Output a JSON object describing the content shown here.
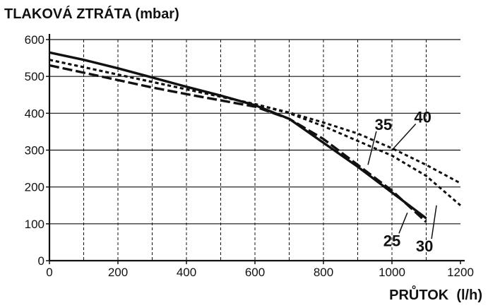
{
  "chart_data": {
    "type": "line",
    "title": "",
    "ylabel": "TLAKOVÁ ZTRÁTA (mbar)",
    "xlabel": "PRŮTOK  (l/h)",
    "xlim": [
      0,
      1200
    ],
    "ylim": [
      0,
      600
    ],
    "x_ticks": [
      "0",
      "200",
      "400",
      "600",
      "800",
      "1000",
      "1200"
    ],
    "y_ticks": [
      "0",
      "100",
      "200",
      "300",
      "400",
      "500",
      "600"
    ],
    "grid": true,
    "legend": "none",
    "series": [
      {
        "name": "25",
        "style": "solid",
        "x": [
          0,
          100,
          200,
          300,
          400,
          500,
          600,
          700,
          800,
          900,
          1000,
          1100
        ],
        "y": [
          565,
          545,
          522,
          497,
          472,
          448,
          422,
          385,
          320,
          255,
          185,
          115
        ]
      },
      {
        "name": "30",
        "style": "dashed",
        "x": [
          0,
          100,
          200,
          300,
          400,
          500,
          600,
          700,
          800,
          900,
          1000,
          1100
        ],
        "y": [
          530,
          510,
          490,
          470,
          452,
          435,
          418,
          385,
          330,
          260,
          190,
          105
        ]
      },
      {
        "name": "35",
        "style": "dotted",
        "x": [
          0,
          100,
          200,
          300,
          400,
          500,
          600,
          700,
          800,
          900,
          1000,
          1100,
          1200
        ],
        "y": [
          545,
          525,
          505,
          485,
          465,
          445,
          425,
          400,
          365,
          325,
          285,
          230,
          150
        ]
      },
      {
        "name": "40",
        "style": "dotted",
        "x": [
          0,
          100,
          200,
          300,
          400,
          500,
          600,
          700,
          800,
          900,
          1000,
          1100,
          1200
        ],
        "y": [
          545,
          525,
          505,
          485,
          465,
          445,
          425,
          402,
          375,
          345,
          305,
          260,
          210
        ]
      }
    ]
  }
}
